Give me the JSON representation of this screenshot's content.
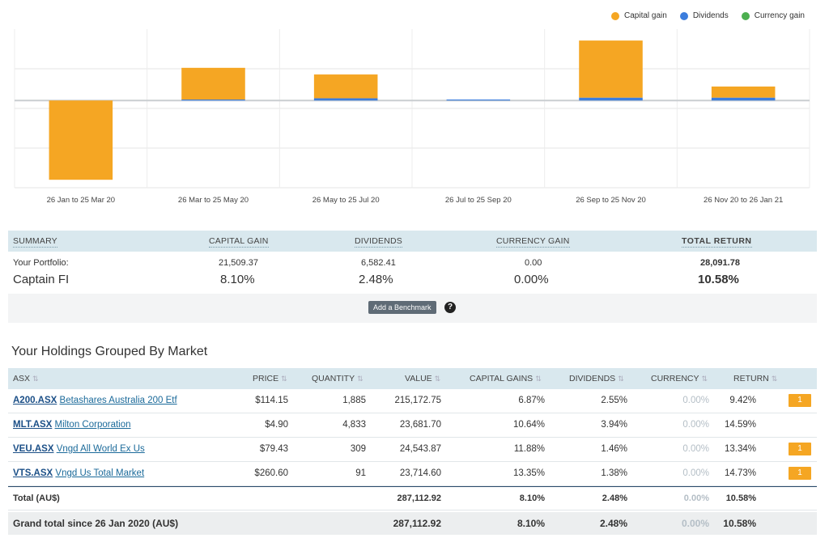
{
  "legend": [
    {
      "label": "Capital gain",
      "color": "#f5a623"
    },
    {
      "label": "Dividends",
      "color": "#3b7ddd"
    },
    {
      "label": "Currency gain",
      "color": "#4caf50"
    }
  ],
  "chart_data": {
    "type": "bar",
    "stacked": true,
    "categories": [
      "26 Jan to 25 Mar 20",
      "26 Mar to 25 May 20",
      "26 May to 25 Jul 20",
      "26 Jul to 25 Sep 20",
      "26 Sep to 25 Nov 20",
      "26 Nov 20 to 26 Jan 21"
    ],
    "series": [
      {
        "name": "Capital gain",
        "color": "#f5a623",
        "values": [
          -50,
          20,
          15,
          0,
          36,
          7
        ]
      },
      {
        "name": "Dividends",
        "color": "#3b7ddd",
        "values": [
          0,
          0.6,
          1.4,
          0.6,
          1.8,
          1.8
        ]
      },
      {
        "name": "Currency gain",
        "color": "#4caf50",
        "values": [
          0,
          0,
          0,
          0,
          0,
          0
        ]
      }
    ],
    "ylim": [
      -55,
      45
    ],
    "grid": true,
    "legend_position": "top-right"
  },
  "summary": {
    "headers": {
      "summary": "SUMMARY",
      "capital": "CAPITAL GAIN",
      "dividends": "DIVIDENDS",
      "currency": "CURRENCY GAIN",
      "total": "TOTAL RETURN"
    },
    "row_label": "Your Portfolio:",
    "portfolio_name": "Captain FI",
    "capital_value": "21,509.37",
    "capital_pct": "8.10%",
    "dividends_value": "6,582.41",
    "dividends_pct": "2.48%",
    "currency_value": "0.00",
    "currency_pct": "0.00%",
    "total_value": "28,091.78",
    "total_pct": "10.58%",
    "benchmark_button": "Add a Benchmark",
    "help": "?"
  },
  "holdings": {
    "title": "Your Holdings Grouped By Market",
    "headers": {
      "market": "ASX",
      "price": "PRICE",
      "quantity": "QUANTITY",
      "value": "VALUE",
      "capital": "CAPITAL GAINS",
      "dividends": "DIVIDENDS",
      "currency": "CURRENCY",
      "return": "RETURN"
    },
    "rows": [
      {
        "code": "A200.ASX",
        "name": "Betashares Australia 200 Etf",
        "price": "$114.15",
        "quantity": "1,885",
        "value": "215,172.75",
        "capital": "6.87%",
        "dividends": "2.55%",
        "currency": "0.00%",
        "return": "9.42%",
        "flag": "1"
      },
      {
        "code": "MLT.ASX",
        "name": "Milton Corporation",
        "price": "$4.90",
        "quantity": "4,833",
        "value": "23,681.70",
        "capital": "10.64%",
        "dividends": "3.94%",
        "currency": "0.00%",
        "return": "14.59%",
        "flag": ""
      },
      {
        "code": "VEU.ASX",
        "name": "Vngd All World Ex Us",
        "price": "$79.43",
        "quantity": "309",
        "value": "24,543.87",
        "capital": "11.88%",
        "dividends": "1.46%",
        "currency": "0.00%",
        "return": "13.34%",
        "flag": "1"
      },
      {
        "code": "VTS.ASX",
        "name": "Vngd Us Total Market",
        "price": "$260.60",
        "quantity": "91",
        "value": "23,714.60",
        "capital": "13.35%",
        "dividends": "1.38%",
        "currency": "0.00%",
        "return": "14.73%",
        "flag": "1"
      }
    ],
    "total": {
      "label": "Total (AU$)",
      "value": "287,112.92",
      "capital": "8.10%",
      "dividends": "2.48%",
      "currency": "0.00%",
      "return": "10.58%"
    },
    "grand": {
      "label": "Grand total since 26 Jan 2020 (AU$)",
      "value": "287,112.92",
      "capital": "8.10%",
      "dividends": "2.48%",
      "currency": "0.00%",
      "return": "10.58%"
    }
  }
}
